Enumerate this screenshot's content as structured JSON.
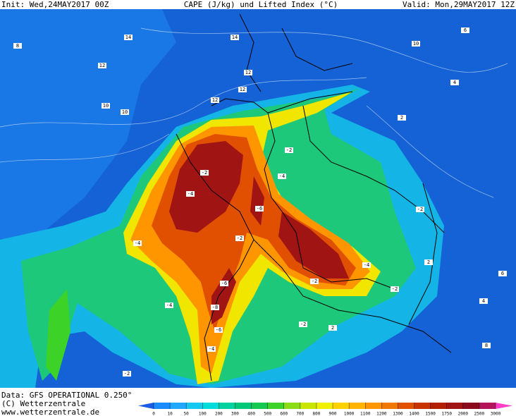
{
  "header": {
    "init": "Init: Wed,24MAY2017 00Z",
    "title": "CAPE (J/kg) und Lifted Index (°C)",
    "valid": "Valid: Mon,29MAY2017 12Z"
  },
  "footer": {
    "data": "Data: GFS OPERATIONAL 0.250°",
    "copyright": "(C) Wetterzentrale",
    "url": "www.wetterzentrale.de"
  },
  "map_labels": [
    "14",
    "14",
    "12",
    "12",
    "12",
    "10",
    "12",
    "10",
    "10",
    "8",
    "6",
    "4",
    "2",
    "-2",
    "-4",
    "-6",
    "-4",
    "-2",
    "-2",
    "-4",
    "-6",
    "-8",
    "-6",
    "-4",
    "-2",
    "-4",
    "-2",
    "2",
    "4",
    "6",
    "8",
    "-2",
    "-4",
    "-2",
    "2",
    "-2"
  ],
  "colorbar": {
    "ticks": [
      0,
      10,
      50,
      100,
      200,
      300,
      400,
      500,
      600,
      700,
      800,
      900,
      1000,
      1100,
      1200,
      1300,
      1400,
      1500,
      1750,
      2000,
      2500,
      3000
    ],
    "under_color": "#1a5ce6",
    "colors": [
      "#1a8cff",
      "#1ea8ff",
      "#14c8f0",
      "#00dcdc",
      "#00d2a0",
      "#00c878",
      "#14c850",
      "#3cd228",
      "#8cdc14",
      "#c8e600",
      "#f0f000",
      "#ffd200",
      "#ffb400",
      "#ff9600",
      "#f07800",
      "#e05000",
      "#c83200",
      "#b41e00",
      "#a01414",
      "#8c0a1e",
      "#b4145a"
    ],
    "over_color": "#ff3cc8"
  }
}
